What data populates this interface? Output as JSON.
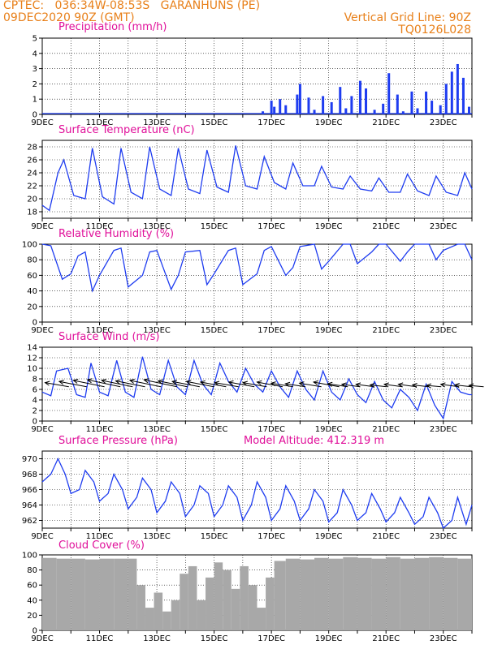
{
  "header": {
    "line1": "CPTEC:   036:34W-08:53S   GARANHUNS (PE)",
    "line2": "09DEC2020 90Z (GMT)",
    "grid_note": "Vertical Grid Line: 90Z",
    "code": "TQ0126L028"
  },
  "colors": {
    "header": "#e8801a",
    "title": "#e0109a",
    "series": "#1e3cf0",
    "bars": "#1e3cf0",
    "cloud": "#a8a8a8",
    "grid": "#000000",
    "wind_arrow": "#000000"
  },
  "chart_data": [
    {
      "type": "bar",
      "title": "Precipitation (mm/h)",
      "x_tick_labels": [
        "9DEC",
        "11DEC",
        "13DEC",
        "15DEC",
        "17DEC",
        "19DEC",
        "21DEC",
        "23DEC"
      ],
      "x_range_days": [
        0,
        15
      ],
      "ylim": [
        0,
        5
      ],
      "y_ticks": [
        0,
        1,
        2,
        3,
        4,
        5
      ],
      "x_days": [
        7.7,
        8.0,
        8.1,
        8.3,
        8.5,
        8.9,
        9.0,
        9.3,
        9.5,
        9.8,
        10.1,
        10.4,
        10.6,
        10.8,
        11.1,
        11.3,
        11.6,
        11.9,
        12.1,
        12.4,
        12.6,
        12.9,
        13.1,
        13.4,
        13.6,
        13.9,
        14.1,
        14.3,
        14.5,
        14.7,
        14.9
      ],
      "values": [
        0.2,
        0.9,
        0.5,
        1.0,
        0.6,
        1.3,
        2.0,
        1.1,
        0.3,
        1.2,
        0.8,
        1.8,
        0.4,
        1.2,
        2.2,
        1.7,
        0.3,
        0.7,
        2.7,
        1.3,
        0.2,
        1.5,
        0.4,
        1.5,
        0.9,
        0.6,
        2.0,
        2.8,
        3.3,
        2.4,
        0.5
      ]
    },
    {
      "type": "line",
      "title": "Surface Temperature (nC)",
      "ylim": [
        17,
        29
      ],
      "y_ticks": [
        18,
        20,
        22,
        24,
        26,
        28
      ],
      "x_days": [
        0.0,
        0.25,
        0.55,
        0.75,
        1.1,
        1.5,
        1.75,
        2.1,
        2.5,
        2.75,
        3.1,
        3.5,
        3.75,
        4.1,
        4.5,
        4.75,
        5.1,
        5.5,
        5.75,
        6.1,
        6.5,
        6.75,
        7.1,
        7.5,
        7.75,
        8.1,
        8.5,
        8.75,
        9.1,
        9.5,
        9.75,
        10.1,
        10.5,
        10.75,
        11.1,
        11.5,
        11.75,
        12.1,
        12.5,
        12.75,
        13.1,
        13.5,
        13.75,
        14.1,
        14.5,
        14.75,
        15.0
      ],
      "values": [
        19.0,
        18.2,
        24.0,
        26.0,
        20.5,
        20.0,
        27.8,
        20.3,
        19.2,
        27.8,
        21.0,
        20.0,
        28.0,
        21.5,
        20.5,
        27.8,
        21.5,
        20.8,
        27.5,
        21.8,
        21.0,
        28.2,
        22.0,
        21.5,
        26.5,
        22.5,
        21.5,
        25.5,
        22.0,
        22.0,
        25.0,
        21.8,
        21.5,
        23.5,
        21.5,
        21.2,
        23.2,
        21.0,
        21.0,
        23.8,
        21.2,
        20.5,
        23.5,
        21.0,
        20.5,
        24.0,
        21.5
      ]
    },
    {
      "type": "line",
      "title": "Relative Humidity (%)",
      "ylim": [
        0,
        100
      ],
      "y_ticks": [
        0,
        20,
        40,
        60,
        80,
        100
      ],
      "x_days": [
        0.0,
        0.3,
        0.7,
        1.0,
        1.25,
        1.5,
        1.75,
        2.0,
        2.5,
        2.75,
        3.0,
        3.5,
        3.75,
        4.0,
        4.5,
        4.75,
        5.0,
        5.5,
        5.75,
        6.0,
        6.5,
        6.75,
        7.0,
        7.5,
        7.75,
        8.0,
        8.5,
        8.75,
        9.0,
        9.5,
        9.75,
        10.0,
        10.5,
        10.75,
        11.0,
        11.5,
        11.75,
        12.0,
        12.5,
        12.75,
        13.0,
        13.5,
        13.75,
        14.0,
        14.5,
        14.75,
        15.0
      ],
      "values": [
        100,
        98,
        55,
        62,
        85,
        90,
        40,
        60,
        92,
        95,
        45,
        60,
        90,
        92,
        42,
        60,
        90,
        92,
        48,
        62,
        92,
        95,
        48,
        62,
        92,
        97,
        60,
        70,
        97,
        100,
        68,
        78,
        100,
        100,
        75,
        90,
        100,
        100,
        78,
        90,
        100,
        100,
        80,
        92,
        100,
        100,
        80
      ]
    },
    {
      "type": "line",
      "title": "Surface Wind (m/s)",
      "ylim": [
        0,
        14
      ],
      "y_ticks": [
        0,
        2,
        4,
        6,
        8,
        10,
        12,
        14
      ],
      "x_days": [
        0.0,
        0.3,
        0.5,
        0.9,
        1.2,
        1.5,
        1.7,
        2.0,
        2.3,
        2.6,
        2.9,
        3.2,
        3.5,
        3.8,
        4.1,
        4.4,
        4.7,
        5.0,
        5.3,
        5.6,
        5.9,
        6.2,
        6.5,
        6.8,
        7.1,
        7.4,
        7.7,
        8.0,
        8.3,
        8.6,
        8.9,
        9.2,
        9.5,
        9.8,
        10.1,
        10.4,
        10.7,
        11.0,
        11.3,
        11.6,
        11.9,
        12.2,
        12.5,
        12.8,
        13.1,
        13.4,
        13.7,
        14.0,
        14.3,
        14.6,
        14.9,
        15.0
      ],
      "values": [
        5.5,
        4.8,
        9.5,
        10.0,
        5.0,
        4.5,
        11.0,
        5.5,
        4.8,
        11.5,
        5.5,
        4.5,
        12.2,
        6.0,
        5.0,
        11.5,
        6.5,
        5.0,
        11.5,
        7.0,
        5.0,
        11.0,
        7.5,
        5.5,
        10.0,
        7.0,
        5.5,
        9.5,
        6.5,
        4.5,
        9.5,
        6.0,
        4.0,
        9.5,
        5.5,
        4.0,
        8.0,
        5.0,
        3.5,
        7.5,
        4.0,
        2.5,
        6.0,
        4.5,
        2.0,
        7.0,
        3.0,
        0.5,
        7.5,
        5.5,
        5.0,
        5.0
      ],
      "wind_arrow_length_ms": [
        6.5,
        7.5,
        8.5,
        9.0,
        8.5,
        8.0,
        8.5,
        9.0,
        8.0,
        7.5,
        7.5,
        7.0,
        6.5,
        7.0,
        6.5,
        7.0,
        6.0,
        5.5,
        6.0,
        7.0,
        5.5,
        5.0,
        5.0,
        4.5,
        5.0,
        5.0,
        4.5,
        4.0,
        5.0,
        4.5,
        4.0
      ]
    },
    {
      "type": "line",
      "title": "Surface Pressure (hPa)",
      "annotation": "Model Altitude: 412.319  m",
      "ylim": [
        961,
        971
      ],
      "y_ticks": [
        962,
        964,
        966,
        968,
        970
      ],
      "x_days": [
        0.0,
        0.3,
        0.55,
        0.8,
        1.0,
        1.3,
        1.5,
        1.8,
        2.0,
        2.3,
        2.5,
        2.8,
        3.0,
        3.3,
        3.5,
        3.8,
        4.0,
        4.3,
        4.5,
        4.8,
        5.0,
        5.3,
        5.5,
        5.8,
        6.0,
        6.3,
        6.5,
        6.8,
        7.0,
        7.3,
        7.5,
        7.8,
        8.0,
        8.3,
        8.5,
        8.8,
        9.0,
        9.3,
        9.5,
        9.8,
        10.0,
        10.3,
        10.5,
        10.8,
        11.0,
        11.3,
        11.5,
        11.8,
        12.0,
        12.3,
        12.5,
        12.8,
        13.0,
        13.3,
        13.5,
        13.8,
        14.0,
        14.3,
        14.5,
        14.8,
        15.0
      ],
      "values": [
        967.0,
        968.0,
        970.0,
        968.0,
        965.5,
        966.0,
        968.5,
        967.0,
        964.5,
        965.5,
        968.0,
        966.0,
        963.5,
        965.0,
        967.5,
        966.0,
        963.0,
        964.5,
        967.0,
        965.5,
        962.5,
        964.0,
        966.5,
        965.5,
        962.5,
        964.0,
        966.5,
        965.0,
        962.0,
        964.0,
        967.0,
        965.0,
        962.0,
        963.5,
        966.5,
        964.5,
        962.0,
        963.5,
        966.0,
        964.5,
        961.8,
        963.0,
        966.0,
        964.0,
        962.0,
        963.0,
        965.5,
        963.5,
        961.8,
        963.0,
        965.0,
        963.0,
        961.5,
        962.5,
        965.0,
        963.0,
        961.0,
        962.0,
        965.0,
        961.5,
        964.0
      ]
    },
    {
      "type": "area",
      "title": "Cloud Cover (%)",
      "ylim": [
        0,
        100
      ],
      "y_ticks": [
        0,
        20,
        40,
        60,
        80,
        100
      ],
      "x_days": [
        0.0,
        0.5,
        1.0,
        1.5,
        2.0,
        2.5,
        3.0,
        3.3,
        3.6,
        3.9,
        4.2,
        4.5,
        4.8,
        5.1,
        5.4,
        5.7,
        6.0,
        6.3,
        6.6,
        6.9,
        7.2,
        7.5,
        7.8,
        8.1,
        8.5,
        9.0,
        9.5,
        10.0,
        10.5,
        11.0,
        11.5,
        12.0,
        12.5,
        13.0,
        13.5,
        14.0,
        14.5,
        15.0
      ],
      "values": [
        96,
        95,
        95,
        94,
        95,
        95,
        95,
        60,
        30,
        50,
        25,
        40,
        75,
        85,
        40,
        70,
        90,
        80,
        55,
        85,
        60,
        30,
        70,
        92,
        95,
        94,
        96,
        95,
        97,
        96,
        95,
        97,
        95,
        96,
        97,
        96,
        95,
        96
      ]
    }
  ]
}
